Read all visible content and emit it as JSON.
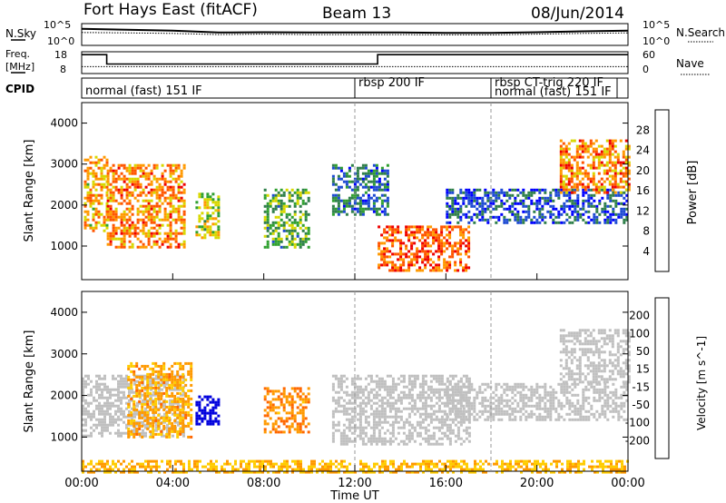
{
  "header": {
    "station": "Fort Hays East (fitACF)",
    "beam": "Beam 13",
    "date": "08/Jun/2014"
  },
  "noise_panel": {
    "left_label": "N.Sky",
    "right_label": "N.Search",
    "left_ticks": [
      "10^5",
      "10^0"
    ],
    "right_ticks": [
      "10^5",
      "10^0"
    ]
  },
  "freq_panel": {
    "left_label_1": "Freq.",
    "left_label_2": "[MHz]",
    "right_label": "Nave",
    "left_ticks": [
      "18",
      "8"
    ],
    "right_ticks": [
      "60",
      "0"
    ],
    "cpid_label": "CPID"
  },
  "cpid_segments": [
    {
      "label": "normal (fast) 151 IF",
      "start_hour": 0
    },
    {
      "label": "rbsp 200 IF",
      "start_hour": 12
    },
    {
      "label": "rbsp CT-trig 220 IF",
      "start_hour": 18
    },
    {
      "label": "normal (fast) 151 IF",
      "start_hour": 18
    }
  ],
  "x_axis": {
    "label": "Time UT",
    "ticks": [
      "00:00",
      "04:00",
      "08:00",
      "12:00",
      "16:00",
      "20:00",
      "00:00"
    ]
  },
  "power_panel": {
    "ylabel": "Slant Range [km]",
    "yticks": [
      "4000",
      "3000",
      "2000",
      "1000"
    ],
    "cbar_label": "Power [dB]",
    "cbar_ticks": [
      "28",
      "24",
      "20",
      "16",
      "12",
      "8",
      "4"
    ]
  },
  "velocity_panel": {
    "ylabel": "Slant Range [km]",
    "yticks": [
      "4000",
      "3000",
      "2000",
      "1000"
    ],
    "cbar_label": "Velocity [m s^-1]",
    "cbar_ticks": [
      "200",
      "100",
      "50",
      "15",
      "-15",
      "-50",
      "-100",
      "-200"
    ]
  },
  "colors": {
    "power_scale": [
      "#0000ff",
      "#1e4bd2",
      "#2f7f4a",
      "#2fa02f",
      "#d8d800",
      "#ff9900",
      "#ff5500",
      "#ee0000"
    ],
    "velocity_scale": [
      "#ff0000",
      "#ff6600",
      "#ff9900",
      "#ffcc00",
      "#c0c0c0",
      "#33bb33",
      "#228822",
      "#2244bb",
      "#0000dd"
    ],
    "ground_scatter": "#c0c0c0"
  },
  "chart_data": [
    {
      "type": "line",
      "title": "N.Sky / N.Search",
      "xlabel": "Time UT",
      "x_range_hours": [
        0,
        24
      ],
      "yscale": "log",
      "ylim": [
        1,
        100000
      ],
      "series": [
        {
          "name": "N.Sky",
          "x": [
            0,
            2,
            4,
            6,
            8,
            10,
            12,
            14,
            16,
            18,
            20,
            22,
            24
          ],
          "y": [
            8000,
            5000,
            3000,
            1000,
            1200,
            1000,
            1000,
            1000,
            800,
            800,
            1200,
            2000,
            3000
          ]
        },
        {
          "name": "N.Search",
          "x": [
            0,
            2,
            4,
            6,
            8,
            10,
            12,
            14,
            16,
            18,
            20,
            22,
            24
          ],
          "y": [
            1000,
            800,
            600,
            300,
            400,
            300,
            300,
            300,
            250,
            250,
            400,
            600,
            800
          ]
        }
      ]
    },
    {
      "type": "line",
      "title": "Freq / Nave",
      "xlabel": "Time UT",
      "x_range_hours": [
        0,
        24
      ],
      "series": [
        {
          "name": "Freq.",
          "units": "MHz",
          "ylim": [
            8,
            18
          ],
          "x": [
            0,
            1.1,
            1.1,
            13,
            13,
            24
          ],
          "y": [
            17,
            17,
            12.3,
            12.3,
            17,
            17
          ]
        },
        {
          "name": "Nave",
          "ylim": [
            0,
            60
          ],
          "x": [
            0,
            12,
            13,
            18,
            24
          ],
          "y": [
            18,
            18,
            18,
            18,
            18
          ]
        }
      ]
    },
    {
      "type": "heatmap",
      "title": "Power",
      "units": "dB",
      "xlabel": "Time UT",
      "ylabel": "Slant Range [km]",
      "x_range_hours": [
        0,
        24
      ],
      "ylim": [
        180,
        4500
      ],
      "zlim": [
        0,
        30
      ],
      "regions": [
        {
          "t0": 0.1,
          "t1": 1.1,
          "r0": 1400,
          "r1": 3200,
          "value": 20
        },
        {
          "t0": 1.1,
          "t1": 4.5,
          "r0": 1000,
          "r1": 3000,
          "value": 22
        },
        {
          "t0": 5.0,
          "t1": 6.0,
          "r0": 1200,
          "r1": 2300,
          "value": 16
        },
        {
          "t0": 8.0,
          "t1": 10.0,
          "r0": 1000,
          "r1": 2400,
          "value": 12
        },
        {
          "t0": 11.0,
          "t1": 13.5,
          "r0": 1800,
          "r1": 3000,
          "value": 8
        },
        {
          "t0": 13.0,
          "t1": 17.0,
          "r0": 400,
          "r1": 1500,
          "value": 24
        },
        {
          "t0": 16.0,
          "t1": 24.0,
          "r0": 1600,
          "r1": 2400,
          "value": 6
        },
        {
          "t0": 21.0,
          "t1": 24.0,
          "r0": 2300,
          "r1": 3600,
          "value": 22
        }
      ]
    },
    {
      "type": "heatmap",
      "title": "Velocity",
      "units": "m s^-1",
      "xlabel": "Time UT",
      "ylabel": "Slant Range [km]",
      "x_range_hours": [
        0,
        24
      ],
      "ylim": [
        180,
        4500
      ],
      "zlim": [
        -200,
        200
      ],
      "regions": [
        {
          "t0": 0.0,
          "t1": 4.5,
          "r0": 1000,
          "r1": 2500,
          "value": 0
        },
        {
          "t0": 2.0,
          "t1": 4.8,
          "r0": 1000,
          "r1": 2800,
          "value": -80
        },
        {
          "t0": 5.0,
          "t1": 6.0,
          "r0": 1300,
          "r1": 2000,
          "value": 220
        },
        {
          "t0": 8.0,
          "t1": 10.0,
          "r0": 1100,
          "r1": 2200,
          "value": -100
        },
        {
          "t0": 11.0,
          "t1": 17.0,
          "r0": 800,
          "r1": 2500,
          "value": 0
        },
        {
          "t0": 16.0,
          "t1": 24.0,
          "r0": 1400,
          "r1": 2300,
          "value": 0
        },
        {
          "t0": 21.0,
          "t1": 24.0,
          "r0": 2300,
          "r1": 3600,
          "value": 0
        },
        {
          "t0": 0.0,
          "t1": 24.0,
          "r0": 180,
          "r1": 450,
          "value": -60
        }
      ]
    }
  ]
}
